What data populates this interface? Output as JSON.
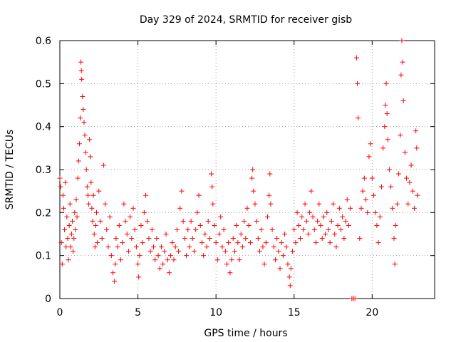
{
  "chart_data": {
    "type": "scatter",
    "title": "Day 329 of 2024, SRMTID for receiver gisb",
    "xlabel": "GPS time / hours",
    "ylabel": "SRMTID / TECUs",
    "xlim": [
      0,
      24
    ],
    "ylim": [
      0,
      0.6
    ],
    "xticks": [
      0,
      5,
      10,
      15,
      20
    ],
    "xtick_labels": [
      "0",
      "5",
      "10",
      "15",
      "20"
    ],
    "yticks": [
      0,
      0.1,
      0.2,
      0.3,
      0.4,
      0.5,
      0.6
    ],
    "ytick_labels": [
      "0",
      "0.1",
      "0.2",
      "0.3",
      "0.4",
      "0.5",
      "0.6"
    ],
    "grid": true,
    "marker": "+",
    "color": "#ff0000",
    "series": [
      {
        "name": "SRMTID",
        "points": [
          [
            0.0,
            0.28
          ],
          [
            0.05,
            0.26
          ],
          [
            0.1,
            0.13
          ],
          [
            0.15,
            0.08
          ],
          [
            0.2,
            0.24
          ],
          [
            0.25,
            0.21
          ],
          [
            0.3,
            0.16
          ],
          [
            0.35,
            0.27
          ],
          [
            0.4,
            0.12
          ],
          [
            0.45,
            0.19
          ],
          [
            0.5,
            0.14
          ],
          [
            0.55,
            0.09
          ],
          [
            0.6,
            0.17
          ],
          [
            0.65,
            0.22
          ],
          [
            0.7,
            0.12
          ],
          [
            0.75,
            0.15
          ],
          [
            0.8,
            0.18
          ],
          [
            0.85,
            0.11
          ],
          [
            0.9,
            0.14
          ],
          [
            0.95,
            0.2
          ],
          [
            1.0,
            0.16
          ],
          [
            1.05,
            0.23
          ],
          [
            1.1,
            0.19
          ],
          [
            1.15,
            0.28
          ],
          [
            1.2,
            0.32
          ],
          [
            1.25,
            0.36
          ],
          [
            1.3,
            0.42
          ],
          [
            1.35,
            0.55
          ],
          [
            1.38,
            0.53
          ],
          [
            1.4,
            0.51
          ],
          [
            1.45,
            0.47
          ],
          [
            1.5,
            0.44
          ],
          [
            1.55,
            0.41
          ],
          [
            1.6,
            0.38
          ],
          [
            1.65,
            0.34
          ],
          [
            1.7,
            0.3
          ],
          [
            1.75,
            0.26
          ],
          [
            1.8,
            0.24
          ],
          [
            1.85,
            0.22
          ],
          [
            1.9,
            0.37
          ],
          [
            1.95,
            0.33
          ],
          [
            2.0,
            0.27
          ],
          [
            2.05,
            0.21
          ],
          [
            2.1,
            0.18
          ],
          [
            2.15,
            0.24
          ],
          [
            2.2,
            0.15
          ],
          [
            2.25,
            0.12
          ],
          [
            2.3,
            0.17
          ],
          [
            2.35,
            0.2
          ],
          [
            2.4,
            0.13
          ],
          [
            2.5,
            0.25
          ],
          [
            2.6,
            0.18
          ],
          [
            2.7,
            0.14
          ],
          [
            2.8,
            0.31
          ],
          [
            2.9,
            0.22
          ],
          [
            3.0,
            0.16
          ],
          [
            3.1,
            0.12
          ],
          [
            3.2,
            0.19
          ],
          [
            3.3,
            0.1
          ],
          [
            3.4,
            0.06
          ],
          [
            3.5,
            0.04
          ],
          [
            3.55,
            0.08
          ],
          [
            3.6,
            0.14
          ],
          [
            3.7,
            0.12
          ],
          [
            3.8,
            0.17
          ],
          [
            3.9,
            0.09
          ],
          [
            4.0,
            0.13
          ],
          [
            4.1,
            0.22
          ],
          [
            4.2,
            0.18
          ],
          [
            4.3,
            0.15
          ],
          [
            4.4,
            0.11
          ],
          [
            4.5,
            0.19
          ],
          [
            4.6,
            0.14
          ],
          [
            4.7,
            0.21
          ],
          [
            4.8,
            0.16
          ],
          [
            4.9,
            0.12
          ],
          [
            5.0,
            0.08
          ],
          [
            5.05,
            0.05
          ],
          [
            5.1,
            0.1
          ],
          [
            5.2,
            0.17
          ],
          [
            5.3,
            0.13
          ],
          [
            5.4,
            0.2
          ],
          [
            5.5,
            0.24
          ],
          [
            5.6,
            0.18
          ],
          [
            5.7,
            0.14
          ],
          [
            5.8,
            0.11
          ],
          [
            5.9,
            0.16
          ],
          [
            6.0,
            0.12
          ],
          [
            6.1,
            0.09
          ],
          [
            6.2,
            0.14
          ],
          [
            6.3,
            0.1
          ],
          [
            6.4,
            0.07
          ],
          [
            6.5,
            0.12
          ],
          [
            6.6,
            0.08
          ],
          [
            6.7,
            0.11
          ],
          [
            6.8,
            0.15
          ],
          [
            6.9,
            0.09
          ],
          [
            7.0,
            0.06
          ],
          [
            7.1,
            0.1
          ],
          [
            7.2,
            0.13
          ],
          [
            7.3,
            0.09
          ],
          [
            7.4,
            0.12
          ],
          [
            7.5,
            0.16
          ],
          [
            7.6,
            0.11
          ],
          [
            7.7,
            0.21
          ],
          [
            7.8,
            0.25
          ],
          [
            7.9,
            0.18
          ],
          [
            8.0,
            0.14
          ],
          [
            8.1,
            0.1
          ],
          [
            8.2,
            0.16
          ],
          [
            8.3,
            0.12
          ],
          [
            8.4,
            0.18
          ],
          [
            8.5,
            0.14
          ],
          [
            8.6,
            0.11
          ],
          [
            8.7,
            0.16
          ],
          [
            8.8,
            0.2
          ],
          [
            8.9,
            0.24
          ],
          [
            9.0,
            0.17
          ],
          [
            9.1,
            0.13
          ],
          [
            9.2,
            0.1
          ],
          [
            9.3,
            0.15
          ],
          [
            9.4,
            0.12
          ],
          [
            9.5,
            0.18
          ],
          [
            9.6,
            0.14
          ],
          [
            9.7,
            0.29
          ],
          [
            9.75,
            0.26
          ],
          [
            9.8,
            0.22
          ],
          [
            9.9,
            0.17
          ],
          [
            10.0,
            0.13
          ],
          [
            10.1,
            0.09
          ],
          [
            10.2,
            0.15
          ],
          [
            10.3,
            0.19
          ],
          [
            10.4,
            0.12
          ],
          [
            10.5,
            0.16
          ],
          [
            10.6,
            0.11
          ],
          [
            10.7,
            0.08
          ],
          [
            10.8,
            0.13
          ],
          [
            10.9,
            0.06
          ],
          [
            11.0,
            0.09
          ],
          [
            11.1,
            0.14
          ],
          [
            11.2,
            0.11
          ],
          [
            11.3,
            0.17
          ],
          [
            11.4,
            0.13
          ],
          [
            11.5,
            0.09
          ],
          [
            11.6,
            0.15
          ],
          [
            11.7,
            0.12
          ],
          [
            11.8,
            0.18
          ],
          [
            11.9,
            0.14
          ],
          [
            12.0,
            0.21
          ],
          [
            12.1,
            0.17
          ],
          [
            12.2,
            0.13
          ],
          [
            12.3,
            0.28
          ],
          [
            12.35,
            0.3
          ],
          [
            12.4,
            0.25
          ],
          [
            12.5,
            0.22
          ],
          [
            12.6,
            0.18
          ],
          [
            12.7,
            0.14
          ],
          [
            12.8,
            0.11
          ],
          [
            12.9,
            0.16
          ],
          [
            13.0,
            0.12
          ],
          [
            13.1,
            0.08
          ],
          [
            13.2,
            0.13
          ],
          [
            13.3,
            0.19
          ],
          [
            13.4,
            0.24
          ],
          [
            13.45,
            0.29
          ],
          [
            13.5,
            0.22
          ],
          [
            13.6,
            0.16
          ],
          [
            13.7,
            0.12
          ],
          [
            13.8,
            0.09
          ],
          [
            13.9,
            0.14
          ],
          [
            14.0,
            0.11
          ],
          [
            14.1,
            0.07
          ],
          [
            14.2,
            0.13
          ],
          [
            14.3,
            0.1
          ],
          [
            14.4,
            0.15
          ],
          [
            14.5,
            0.12
          ],
          [
            14.6,
            0.08
          ],
          [
            14.7,
            0.05
          ],
          [
            14.75,
            0.03
          ],
          [
            14.8,
            0.07
          ],
          [
            14.9,
            0.11
          ],
          [
            15.0,
            0.16
          ],
          [
            15.1,
            0.13
          ],
          [
            15.2,
            0.2
          ],
          [
            15.3,
            0.17
          ],
          [
            15.4,
            0.14
          ],
          [
            15.5,
            0.19
          ],
          [
            15.6,
            0.16
          ],
          [
            15.7,
            0.22
          ],
          [
            15.8,
            0.18
          ],
          [
            15.9,
            0.15
          ],
          [
            16.0,
            0.2
          ],
          [
            16.1,
            0.25
          ],
          [
            16.2,
            0.19
          ],
          [
            16.3,
            0.16
          ],
          [
            16.4,
            0.13
          ],
          [
            16.5,
            0.18
          ],
          [
            16.6,
            0.22
          ],
          [
            16.7,
            0.17
          ],
          [
            16.8,
            0.14
          ],
          [
            16.9,
            0.19
          ],
          [
            17.0,
            0.15
          ],
          [
            17.1,
            0.2
          ],
          [
            17.2,
            0.16
          ],
          [
            17.3,
            0.13
          ],
          [
            17.4,
            0.18
          ],
          [
            17.5,
            0.22
          ],
          [
            17.6,
            0.15
          ],
          [
            17.7,
            0.12
          ],
          [
            17.8,
            0.17
          ],
          [
            17.9,
            0.21
          ],
          [
            18.0,
            0.16
          ],
          [
            18.1,
            0.19
          ],
          [
            18.2,
            0.14
          ],
          [
            18.3,
            0.18
          ],
          [
            18.4,
            0.23
          ],
          [
            18.5,
            0.17
          ],
          [
            18.6,
            0.21
          ],
          [
            18.7,
            0.0
          ],
          [
            18.8,
            0.0
          ],
          [
            18.9,
            0.0
          ],
          [
            19.0,
            0.56
          ],
          [
            19.05,
            0.5
          ],
          [
            19.1,
            0.42
          ],
          [
            19.2,
            0.14
          ],
          [
            19.3,
            0.21
          ],
          [
            19.4,
            0.25
          ],
          [
            19.5,
            0.28
          ],
          [
            19.6,
            0.23
          ],
          [
            19.7,
            0.2
          ],
          [
            19.8,
            0.33
          ],
          [
            19.9,
            0.36
          ],
          [
            20.0,
            0.28
          ],
          [
            20.1,
            0.24
          ],
          [
            20.2,
            0.2
          ],
          [
            20.3,
            0.17
          ],
          [
            20.4,
            0.13
          ],
          [
            20.5,
            0.19
          ],
          [
            20.6,
            0.26
          ],
          [
            20.7,
            0.35
          ],
          [
            20.8,
            0.4
          ],
          [
            20.85,
            0.45
          ],
          [
            20.9,
            0.5
          ],
          [
            20.95,
            0.43
          ],
          [
            21.0,
            0.37
          ],
          [
            21.1,
            0.3
          ],
          [
            21.2,
            0.26
          ],
          [
            21.3,
            0.21
          ],
          [
            21.4,
            0.14
          ],
          [
            21.45,
            0.08
          ],
          [
            21.5,
            0.17
          ],
          [
            21.6,
            0.22
          ],
          [
            21.7,
            0.29
          ],
          [
            21.8,
            0.38
          ],
          [
            21.85,
            0.52
          ],
          [
            21.9,
            0.6
          ],
          [
            21.95,
            0.55
          ],
          [
            22.0,
            0.46
          ],
          [
            22.1,
            0.34
          ],
          [
            22.2,
            0.28
          ],
          [
            22.3,
            0.22
          ],
          [
            22.4,
            0.27
          ],
          [
            22.5,
            0.31
          ],
          [
            22.6,
            0.25
          ],
          [
            22.7,
            0.21
          ],
          [
            22.8,
            0.39
          ],
          [
            22.85,
            0.35
          ],
          [
            22.9,
            0.24
          ]
        ]
      }
    ]
  }
}
